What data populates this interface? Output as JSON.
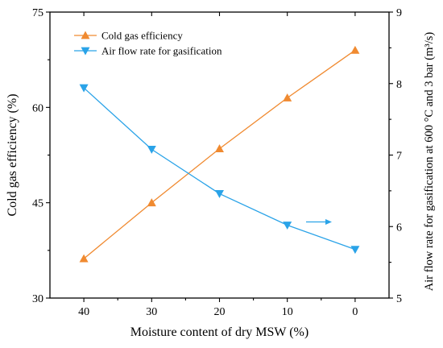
{
  "chart_data": {
    "type": "line",
    "x_axis": {
      "label": "Moisture content of dry MSW (%)",
      "ticks": [
        40,
        30,
        20,
        10,
        0
      ],
      "range": [
        45,
        -5
      ],
      "reversed": true
    },
    "y_axis_left": {
      "label": "Cold gas efficiency (%)",
      "ticks": [
        30,
        45,
        60,
        75
      ],
      "range": [
        30,
        75
      ]
    },
    "y_axis_right": {
      "label": "Air flow rate for gasification at 600 °C and 3 bar (m³/s)",
      "ticks": [
        5,
        6,
        7,
        8,
        9
      ],
      "range": [
        5,
        9
      ]
    },
    "x": [
      40,
      30,
      20,
      10,
      0
    ],
    "series": [
      {
        "name": "Cold gas efficiency",
        "axis": "left",
        "marker": "triangle-up",
        "color": "#F08A30",
        "values": [
          36.2,
          45.0,
          53.5,
          61.5,
          69.0
        ]
      },
      {
        "name": "Air flow rate for gasification",
        "axis": "right",
        "marker": "triangle-down",
        "color": "#2AA3E8",
        "values": [
          7.94,
          7.08,
          6.46,
          6.02,
          5.68
        ]
      }
    ],
    "legend_position": "top-left",
    "grid": false,
    "annotations": [
      {
        "type": "arrow",
        "points_to": "right axis",
        "color": "#2AA3E8"
      }
    ]
  }
}
